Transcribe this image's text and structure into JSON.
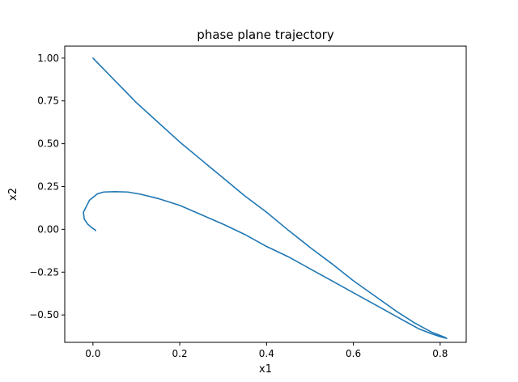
{
  "chart_data": {
    "type": "line",
    "title": "phase plane trajectory",
    "xlabel": "x1",
    "ylabel": "x2",
    "xlim": [
      -0.065,
      0.86
    ],
    "ylim": [
      -0.66,
      1.07
    ],
    "xticks": [
      0.0,
      0.2,
      0.4,
      0.6,
      0.8
    ],
    "xtick_labels": [
      "0.0",
      "0.2",
      "0.4",
      "0.6",
      "0.8"
    ],
    "yticks": [
      -0.5,
      -0.25,
      0.0,
      0.25,
      0.5,
      0.75,
      1.0
    ],
    "ytick_labels": [
      "−0.50",
      "−0.25",
      "0.00",
      "0.25",
      "0.50",
      "0.75",
      "1.00"
    ],
    "grid": false,
    "legend": "none",
    "series": [
      {
        "color": "#1f77b4",
        "x": [
          0.0,
          0.05,
          0.1,
          0.15,
          0.2,
          0.25,
          0.3,
          0.35,
          0.4,
          0.45,
          0.5,
          0.55,
          0.6,
          0.65,
          0.7,
          0.74,
          0.78,
          0.8,
          0.812,
          0.815,
          0.8,
          0.78,
          0.75,
          0.7,
          0.65,
          0.6,
          0.55,
          0.5,
          0.45,
          0.4,
          0.35,
          0.3,
          0.25,
          0.2,
          0.15,
          0.11,
          0.08,
          0.05,
          0.025,
          0.01,
          -0.008,
          -0.022,
          -0.02,
          -0.012,
          -0.005,
          0.0,
          0.003,
          0.005,
          0.006
        ],
        "y": [
          1.0,
          0.87,
          0.74,
          0.625,
          0.51,
          0.405,
          0.3,
          0.195,
          0.1,
          -0.005,
          -0.105,
          -0.2,
          -0.3,
          -0.39,
          -0.48,
          -0.545,
          -0.6,
          -0.62,
          -0.632,
          -0.637,
          -0.627,
          -0.61,
          -0.58,
          -0.51,
          -0.44,
          -0.37,
          -0.3,
          -0.23,
          -0.16,
          -0.1,
          -0.03,
          0.03,
          0.085,
          0.14,
          0.18,
          0.205,
          0.218,
          0.22,
          0.218,
          0.207,
          0.17,
          0.1,
          0.06,
          0.03,
          0.015,
          0.005,
          0.0,
          -0.003,
          -0.008
        ]
      }
    ]
  }
}
